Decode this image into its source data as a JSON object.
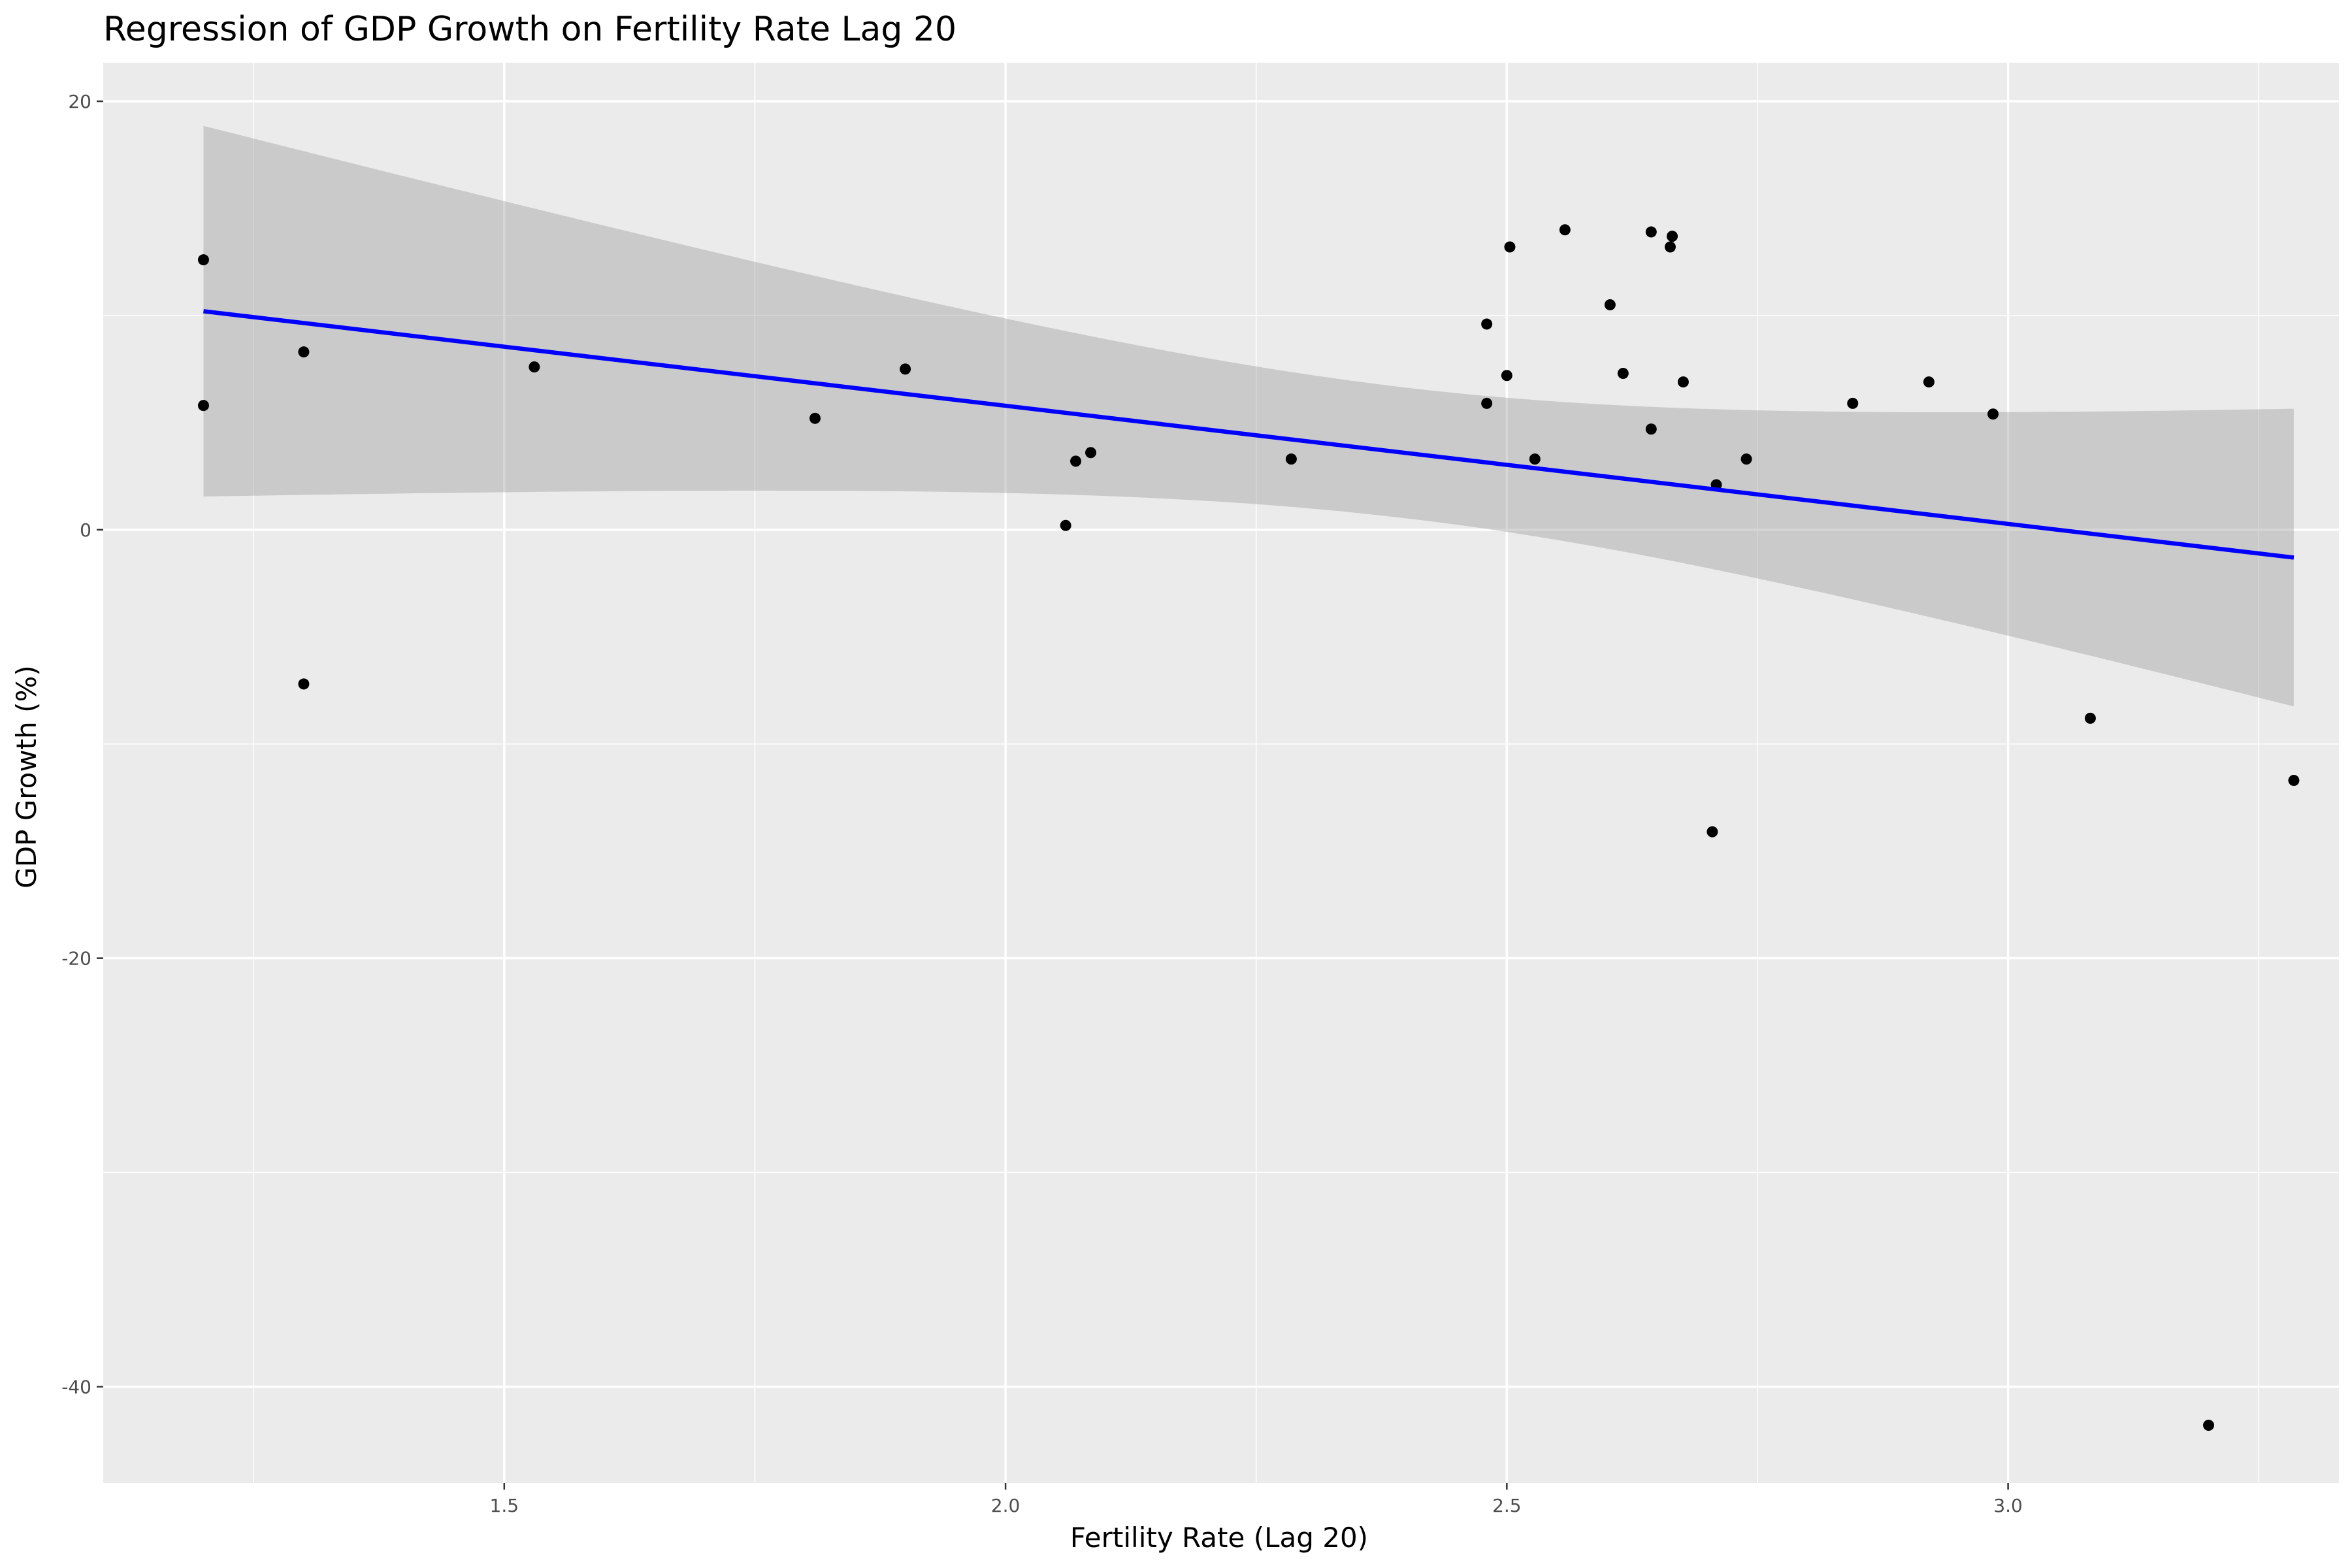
{
  "chart_data": {
    "type": "scatter",
    "title": "Regression of GDP Growth on Fertility Rate Lag 20",
    "xlabel": "Fertility Rate (Lag 20)",
    "ylabel": "GDP Growth (%)",
    "xlim": [
      1.1,
      3.33
    ],
    "ylim": [
      -44.5,
      21.8
    ],
    "x_ticks": [
      1.5,
      2.0,
      2.5,
      3.0
    ],
    "x_tick_labels": [
      "1.5",
      "2.0",
      "2.5",
      "3.0"
    ],
    "y_ticks": [
      -40,
      -20,
      0,
      20
    ],
    "y_tick_labels": [
      "-40",
      "-20",
      "0",
      "20"
    ],
    "grid": true,
    "legend": "none",
    "colors": {
      "panel": "#ebebeb",
      "grid": "#ffffff",
      "points": "#000000",
      "fit_line": "#0000ff",
      "confidence_band": "#999999"
    },
    "points": [
      {
        "x": 1.2,
        "y": 12.6
      },
      {
        "x": 1.2,
        "y": 5.8
      },
      {
        "x": 1.3,
        "y": 8.3
      },
      {
        "x": 1.3,
        "y": -7.2
      },
      {
        "x": 1.53,
        "y": 7.6
      },
      {
        "x": 1.81,
        "y": 5.2
      },
      {
        "x": 1.9,
        "y": 7.5
      },
      {
        "x": 2.06,
        "y": 0.2
      },
      {
        "x": 2.07,
        "y": 3.2
      },
      {
        "x": 2.085,
        "y": 3.6
      },
      {
        "x": 2.285,
        "y": 3.3
      },
      {
        "x": 2.48,
        "y": 9.6
      },
      {
        "x": 2.48,
        "y": 5.9
      },
      {
        "x": 2.5,
        "y": 7.2
      },
      {
        "x": 2.503,
        "y": 13.2
      },
      {
        "x": 2.528,
        "y": 3.3
      },
      {
        "x": 2.558,
        "y": 14.0
      },
      {
        "x": 2.603,
        "y": 10.5
      },
      {
        "x": 2.616,
        "y": 7.3
      },
      {
        "x": 2.644,
        "y": 13.9
      },
      {
        "x": 2.644,
        "y": 4.7
      },
      {
        "x": 2.663,
        "y": 13.2
      },
      {
        "x": 2.665,
        "y": 13.7
      },
      {
        "x": 2.676,
        "y": 6.9
      },
      {
        "x": 2.705,
        "y": -14.1
      },
      {
        "x": 2.709,
        "y": 2.1
      },
      {
        "x": 2.739,
        "y": 3.3
      },
      {
        "x": 2.845,
        "y": 5.9
      },
      {
        "x": 2.921,
        "y": 6.9
      },
      {
        "x": 2.985,
        "y": 5.4
      },
      {
        "x": 3.082,
        "y": -8.8
      },
      {
        "x": 3.2,
        "y": -41.8
      },
      {
        "x": 3.285,
        "y": -11.7
      }
    ],
    "fit": {
      "method": "linear regression",
      "x_range": [
        1.2,
        3.285
      ],
      "y_at_start": 10.2,
      "y_at_end": -1.3,
      "ci_upper_at_start": 18.8,
      "ci_lower_at_start": 1.5,
      "ci_upper_at_end": 5.7,
      "ci_lower_at_end": -8.2
    }
  }
}
